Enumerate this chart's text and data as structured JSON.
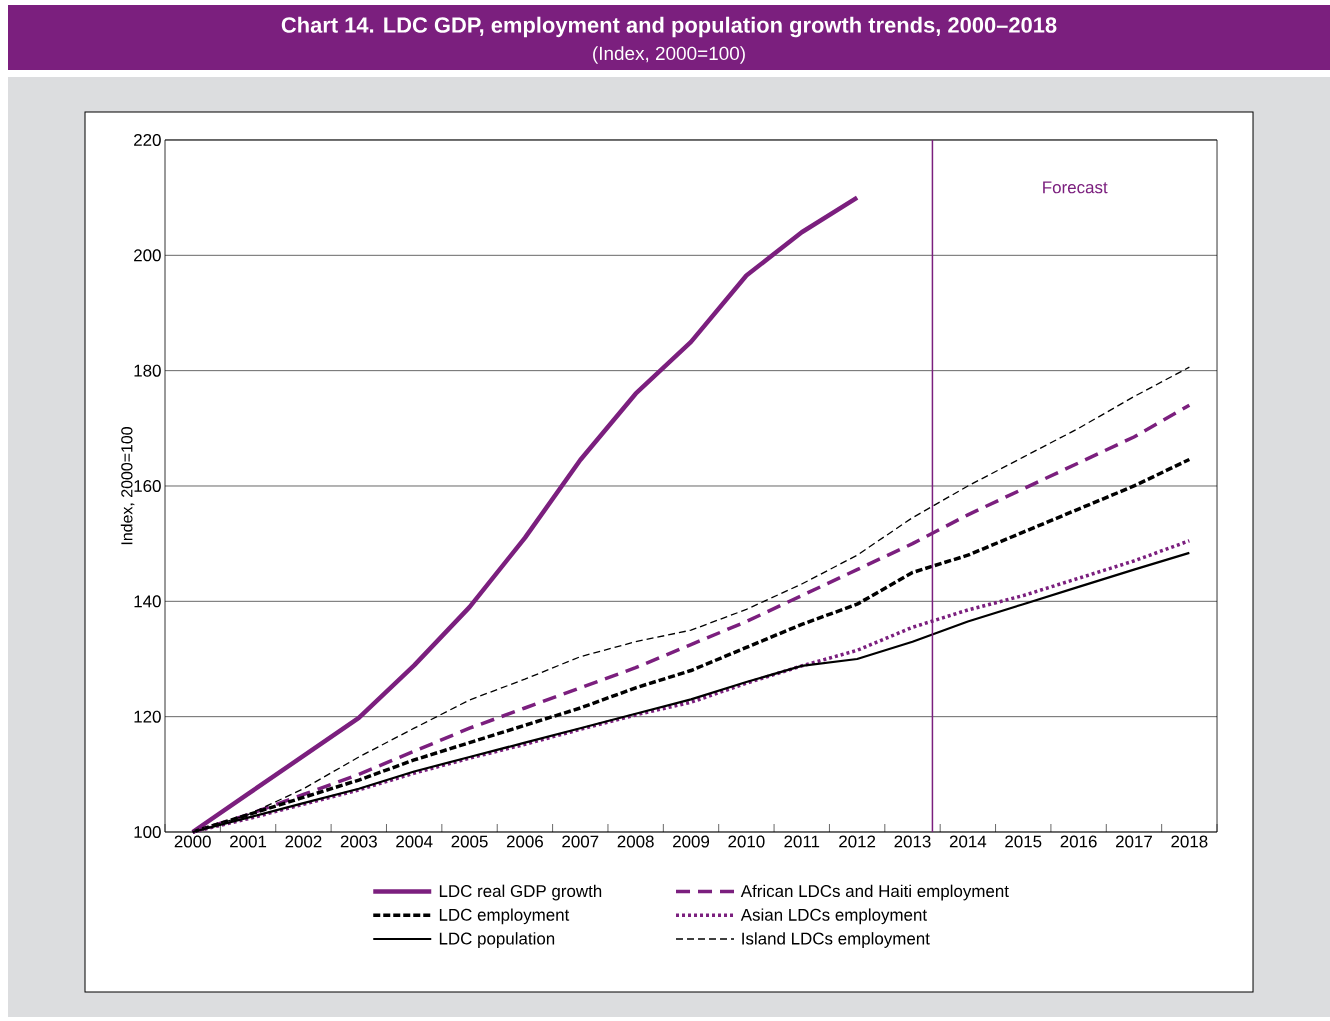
{
  "chart_data": {
    "type": "line",
    "title": "Chart 14. LDC GDP, employment and population growth trends, 2000–2018",
    "subtitle": "(Index, 2000=100)",
    "ylabel": "Index, 2000=100",
    "x": [
      2000,
      2001,
      2002,
      2003,
      2004,
      2005,
      2006,
      2007,
      2008,
      2009,
      2010,
      2011,
      2012,
      2013,
      2014,
      2015,
      2016,
      2017,
      2018
    ],
    "xlim": [
      1999.5,
      2018.5
    ],
    "xticks": [
      2000,
      2001,
      2002,
      2003,
      2004,
      2005,
      2006,
      2007,
      2008,
      2009,
      2010,
      2011,
      2012,
      2013,
      2014,
      2015,
      2016,
      2017,
      2018
    ],
    "ylim": [
      100,
      220
    ],
    "yticks": [
      100,
      120,
      140,
      160,
      180,
      200,
      220
    ],
    "grid": "y",
    "legend": "bottom",
    "ref_lines": [
      {
        "axis": "x",
        "value": 2013.36,
        "label": "Forecast",
        "color": "#7b1f7e",
        "line_style": "solid"
      }
    ],
    "series": [
      {
        "name": "LDC real GDP growth",
        "color": "#7b1f7e",
        "line_style": "solid",
        "values": [
          100,
          106.6,
          113.2,
          119.8,
          128.9,
          139,
          151,
          164.5,
          176,
          185,
          196.5,
          204,
          210,
          null,
          null,
          null,
          null,
          null,
          null
        ]
      },
      {
        "name": "African LDCs and  Haiti employment",
        "color": "#7b1f7e",
        "line_style": "dashed",
        "values": [
          100,
          103,
          106.5,
          110,
          114,
          118,
          121.5,
          125,
          128.5,
          132.5,
          136.5,
          141,
          145.5,
          150,
          155,
          159.5,
          164,
          168.5,
          174
        ]
      },
      {
        "name": "LDC employment",
        "color": "#000000",
        "line_style": "dashed",
        "values": [
          100,
          103,
          106,
          109,
          112.5,
          115.5,
          118.5,
          121.5,
          125,
          128,
          132,
          136,
          139.5,
          145,
          148,
          152,
          156,
          160,
          164.6
        ]
      },
      {
        "name": "Asian LDCs employment",
        "color": "#7b1f7e",
        "line_style": "dotted",
        "values": [
          100,
          102.3,
          104.8,
          107.3,
          110.2,
          112.8,
          115.2,
          117.8,
          120.3,
          122.5,
          125.8,
          128.8,
          131.5,
          135.5,
          138.5,
          141,
          144,
          147,
          150.5
        ]
      },
      {
        "name": "LDC population",
        "color": "#000000",
        "line_style": "solid",
        "values": [
          100,
          102.5,
          105,
          107.5,
          110.5,
          113,
          115.5,
          118,
          120.5,
          123,
          126,
          128.8,
          130,
          133,
          136.5,
          139.5,
          142.5,
          145.5,
          148.4
        ]
      },
      {
        "name": "Island LDCs employment",
        "color": "#000000",
        "line_style": "dashed",
        "values": [
          100,
          103,
          107.5,
          113,
          118,
          122.9,
          126.5,
          130.4,
          133,
          135,
          138.6,
          143,
          148,
          154.5,
          160,
          165,
          170,
          175.5,
          180.6
        ]
      }
    ]
  }
}
